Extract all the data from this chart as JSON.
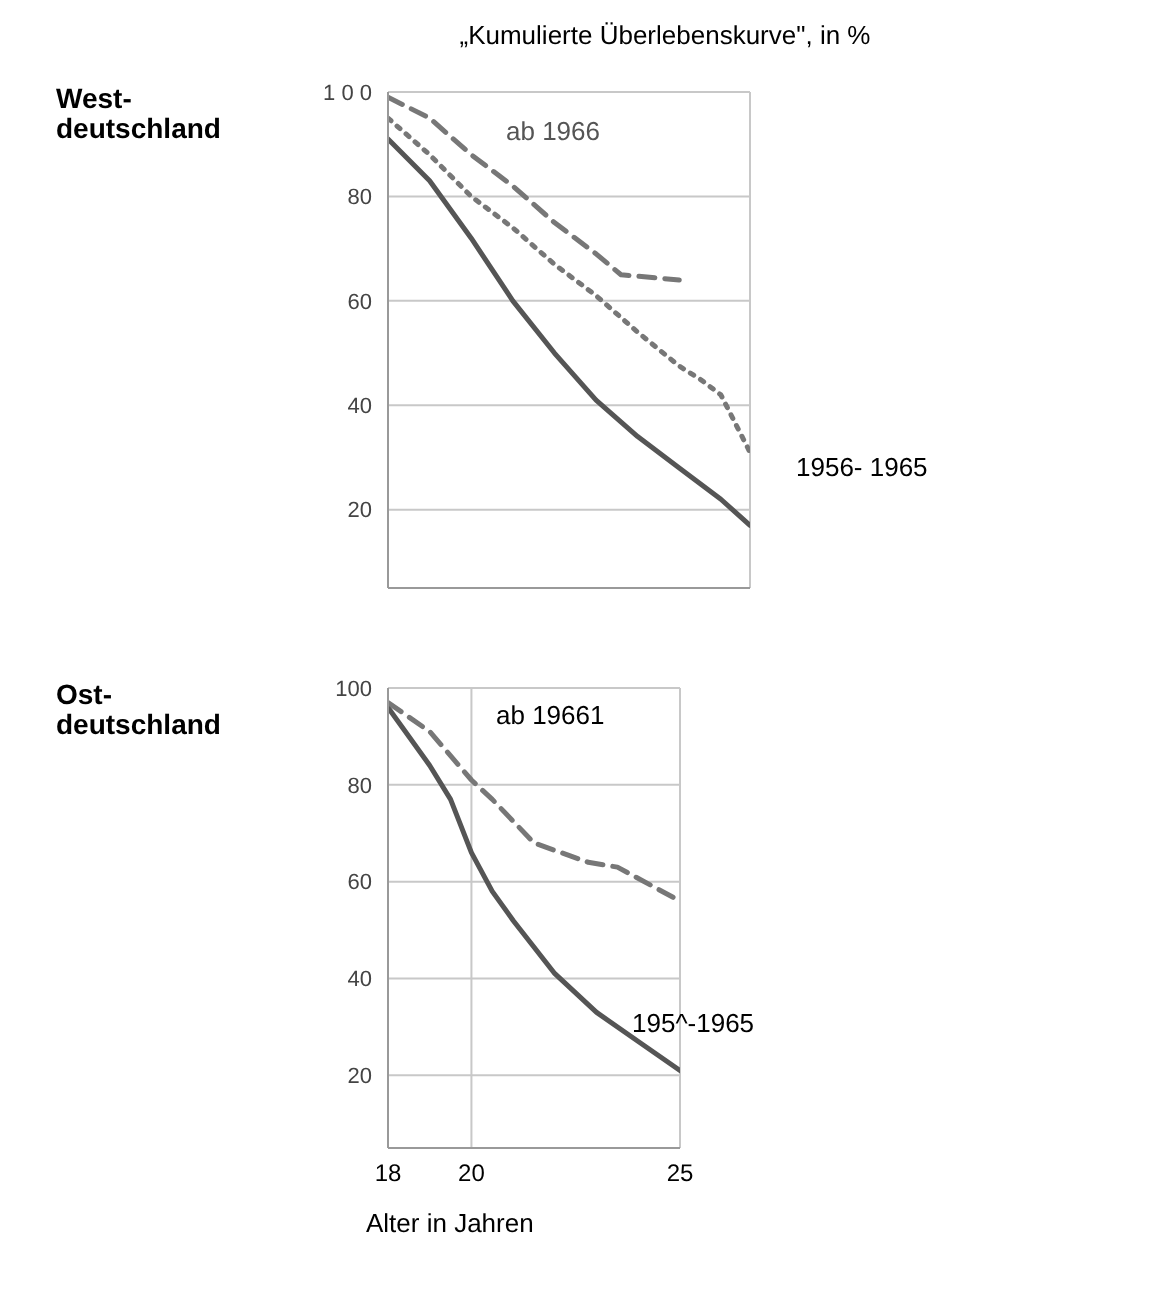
{
  "chart_data": [
    {
      "type": "line",
      "title": "„Kumulierte Überlebenskurve\", in %",
      "subtitle": "West-deutschland",
      "xlim": [
        18,
        26.7
      ],
      "xticks": [
        18,
        20,
        25
      ],
      "ylim": [
        5,
        100
      ],
      "yticks": [
        20,
        40,
        60,
        80,
        {
          "value": 100,
          "label": "1 0 0"
        }
      ],
      "tick_labels": "y",
      "grid": true,
      "marker": "none",
      "annotations": [
        "ab 1966",
        "1956- 1965"
      ],
      "series": [
        {
          "color": "#555555",
          "line_style": "solid",
          "x": [
            18,
            19,
            20,
            21,
            22,
            23,
            24,
            25,
            26,
            26.7
          ],
          "values": [
            91,
            83,
            72,
            60,
            50,
            41,
            34,
            28,
            22,
            17
          ]
        },
        {
          "color": "#777777",
          "line_style": "dotted",
          "x": [
            18,
            19,
            20,
            21,
            22,
            23,
            24,
            25,
            25.5,
            26,
            26.7
          ],
          "values": [
            95,
            88,
            80,
            74,
            67,
            61,
            54,
            47.5,
            45,
            42,
            31
          ]
        },
        {
          "color": "#777777",
          "line_style": "dashed",
          "x": [
            18,
            19,
            20,
            21,
            22,
            23,
            23.6,
            25
          ],
          "values": [
            99,
            95,
            88,
            82,
            75,
            69,
            65,
            64
          ]
        }
      ]
    },
    {
      "type": "line",
      "subtitle": "Ost-deutschland",
      "xlabel": "Alter in Jahren",
      "xlim": [
        18,
        25
      ],
      "xticks": [
        18,
        20,
        25
      ],
      "ylim": [
        5,
        100
      ],
      "yticks": [
        20,
        40,
        60,
        80,
        100
      ],
      "grid": true,
      "marker": "none",
      "annotations": [
        "ab 19661",
        "195^-1965"
      ],
      "series": [
        {
          "color": "#555555",
          "line_style": "solid",
          "x": [
            18,
            19,
            19.5,
            20,
            20.5,
            21,
            22,
            23,
            24,
            25
          ],
          "values": [
            96,
            84,
            77,
            66,
            58,
            52,
            41,
            33,
            27,
            21
          ]
        },
        {
          "color": "#777777",
          "line_style": "dashed",
          "x": [
            18,
            19,
            20,
            20.5,
            21.5,
            22.8,
            23.5,
            25
          ],
          "values": [
            97,
            91,
            81,
            77,
            68,
            64,
            63,
            56
          ]
        }
      ]
    }
  ]
}
